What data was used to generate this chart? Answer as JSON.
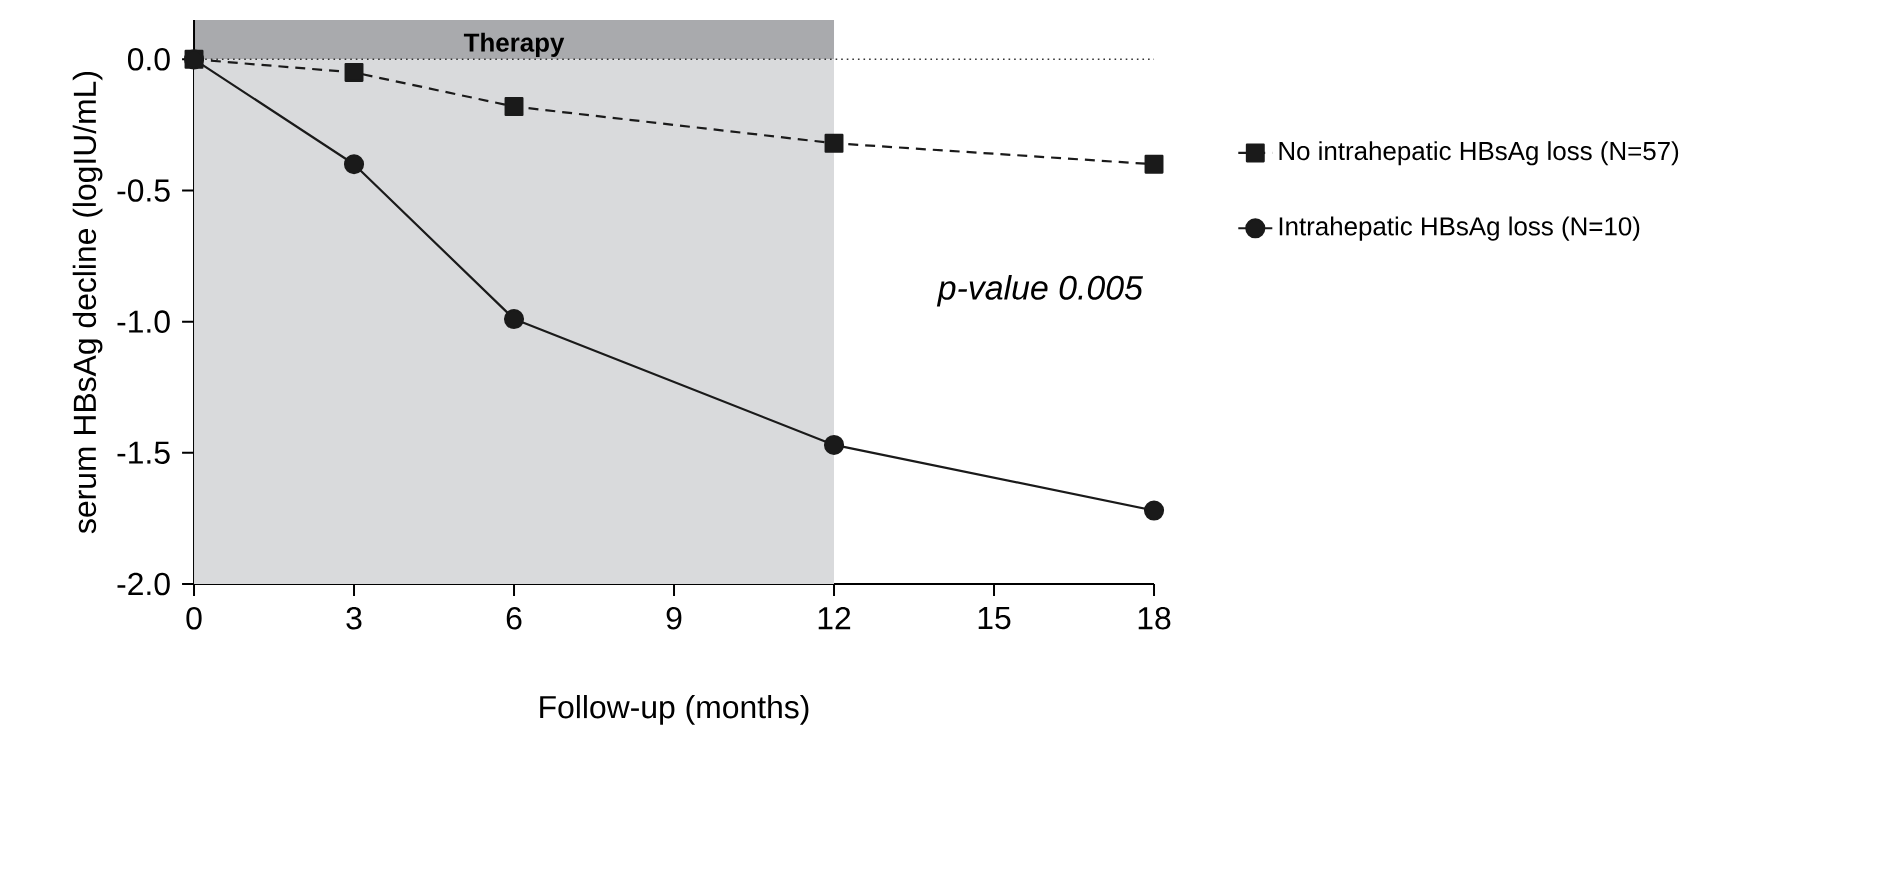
{
  "chart_data": {
    "type": "line",
    "xlabel": "Follow-up (months)",
    "ylabel": "serum HBsAg decline (logIU/mL)",
    "x": [
      0,
      3,
      6,
      12,
      18
    ],
    "series": [
      {
        "name": "No intrahepatic HBsAg loss (N=57)",
        "color": "#1a1a1a",
        "values": [
          0.0,
          -0.05,
          -0.18,
          -0.32,
          -0.4
        ],
        "marker": "square",
        "line_style": "dashed"
      },
      {
        "name": "Intrahepatic HBsAg loss (N=10)",
        "color": "#1a1a1a",
        "values": [
          0.0,
          -0.4,
          -0.99,
          -1.47,
          -1.72
        ],
        "marker": "circle",
        "line_style": "solid"
      }
    ],
    "xlim": [
      0,
      18
    ],
    "xticks": [
      0,
      3,
      6,
      9,
      12,
      15,
      18
    ],
    "ylim": [
      -2.0,
      0.15
    ],
    "yticks": [
      {
        "value": -2.0,
        "label": "-2.0"
      },
      {
        "value": -1.5,
        "label": "-1.5"
      },
      {
        "value": -1.0,
        "label": "-1.0"
      },
      {
        "value": -0.5,
        "label": "-0.5"
      },
      {
        "value": 0.0,
        "label": "0.0"
      }
    ],
    "bands": [
      {
        "axis": "x",
        "from": 0,
        "to": 12,
        "label": "Therapy",
        "color": "#d9dadc"
      }
    ],
    "ref_lines": [
      {
        "axis": "y",
        "value": 0,
        "label": null,
        "line_style": "dotted",
        "color": "#333333"
      }
    ],
    "annotations": [
      "p-value 0.005"
    ],
    "legend": "right",
    "grid": false
  }
}
